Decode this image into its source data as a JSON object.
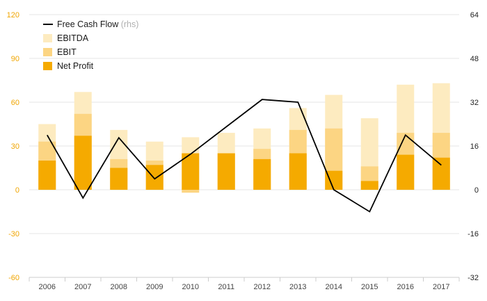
{
  "chart_data": {
    "type": "bar",
    "categories": [
      "2006",
      "2007",
      "2008",
      "2009",
      "2010",
      "2011",
      "2012",
      "2013",
      "2014",
      "2015",
      "2016",
      "2017"
    ],
    "y_left": {
      "range": [
        -60,
        120
      ],
      "ticks": [
        "120",
        "90",
        "60",
        "30",
        "0",
        "-30",
        "-60"
      ],
      "tick_values": [
        120,
        90,
        60,
        30,
        0,
        -30,
        -60
      ]
    },
    "y_right": {
      "range": [
        -32,
        64
      ],
      "ticks": [
        "64",
        "48",
        "32",
        "16",
        "0",
        "-16",
        "-32"
      ],
      "tick_values": [
        64,
        48,
        32,
        16,
        0,
        -16,
        -32
      ]
    },
    "series": [
      {
        "name": "EBITDA",
        "axis": "left",
        "kind": "bar",
        "values": [
          45,
          67,
          41,
          33,
          36,
          39,
          42,
          56,
          65,
          49,
          72,
          73
        ]
      },
      {
        "name": "EBIT",
        "axis": "left",
        "kind": "bar",
        "values": [
          33,
          52,
          21,
          20,
          -2,
          25,
          28,
          41,
          42,
          16,
          39,
          39
        ]
      },
      {
        "name": "Net Profit",
        "axis": "left",
        "kind": "bar",
        "values": [
          20,
          37,
          15,
          17,
          25,
          25,
          21,
          25,
          13,
          6,
          24,
          22
        ]
      },
      {
        "name": "Free Cash Flow",
        "axis": "right",
        "kind": "line",
        "values": [
          20,
          -3,
          19,
          4,
          13,
          23,
          33,
          32,
          0,
          -8,
          20,
          9
        ]
      }
    ],
    "legend": {
      "placement": "top-left",
      "items": [
        {
          "label": "Free Cash Flow",
          "suffix": "(rhs)",
          "marker": "line"
        },
        {
          "label": "EBITDA",
          "suffix": "",
          "marker": "box"
        },
        {
          "label": "EBIT",
          "suffix": "",
          "marker": "box"
        },
        {
          "label": "Net Profit",
          "suffix": "",
          "marker": "box"
        }
      ]
    },
    "colors": {
      "EBITDA": "#fdebc0",
      "EBIT": "#fcd583",
      "Net Profit": "#f5aa00",
      "Free Cash Flow": "#000000",
      "grid": "#e6e6e6",
      "left_ticks": "#f0a500"
    },
    "grid": true
  }
}
